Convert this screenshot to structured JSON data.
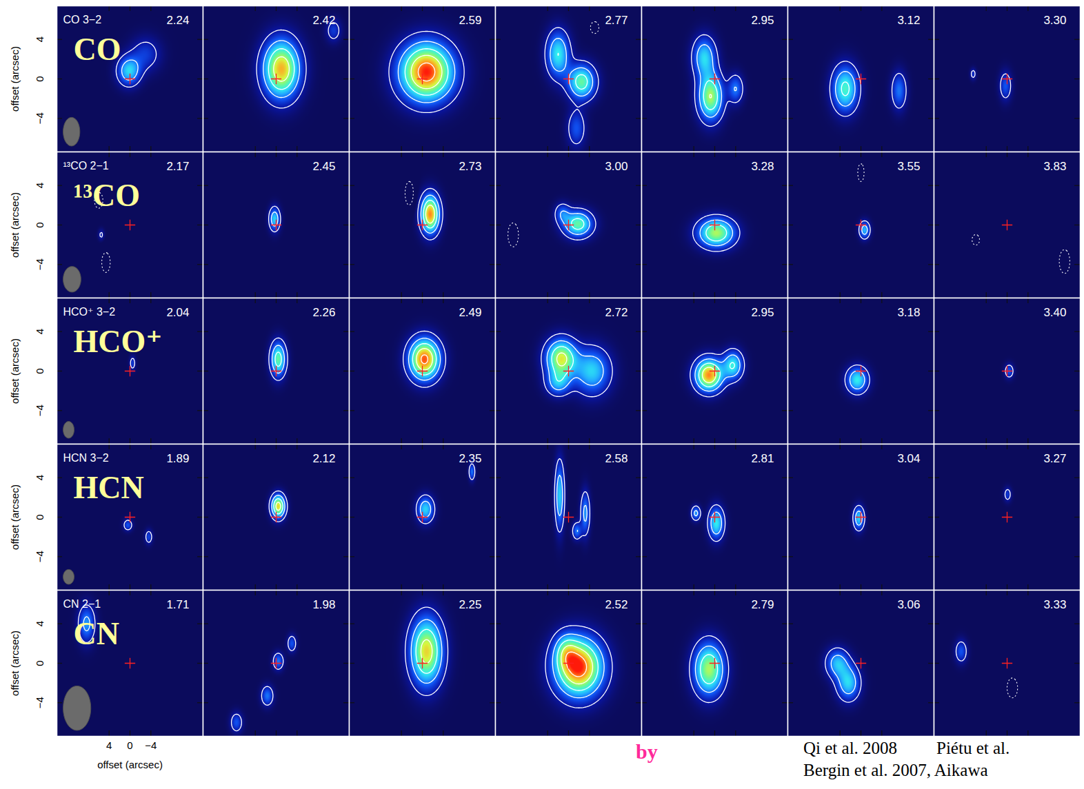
{
  "chart_data": {
    "type": "channel_map",
    "x_label": "offset (arcsec)",
    "y_label": "offset (arcsec)",
    "xlim": [
      14,
      -14
    ],
    "ylim": [
      -7.4,
      7.4
    ],
    "xticks": [
      4,
      0,
      {
        "value": -4,
        "label": "−4"
      }
    ],
    "yticks": [
      4,
      0,
      {
        "value": -4,
        "label": "−4"
      }
    ],
    "intensity_lim": [
      0,
      1
    ],
    "contour_levels": [
      0.12,
      0.3,
      0.5,
      0.7,
      0.9
    ],
    "star": [
      0,
      0
    ],
    "marker": "plus",
    "rows": [
      {
        "name": "CO",
        "transition": "CO 3−2",
        "beam": {
          "width": 3.2,
          "height": 2.9
        },
        "channels": [
          {
            "velocity": "2.24",
            "blobs": [
              {
                "x": 0.2,
                "y": 0.8,
                "sx": 1.5,
                "sy": 1.0,
                "peak": 0.45
              },
              {
                "x": -3,
                "y": 2.5,
                "sx": 2.0,
                "sy": 1.2,
                "peak": 0.2
              }
            ]
          },
          {
            "velocity": "2.42",
            "blobs": [
              {
                "x": -1,
                "y": 1,
                "sx": 2.4,
                "sy": 2.0,
                "peak": 0.85
              },
              {
                "x": -11,
                "y": 4.9,
                "sx": 1.0,
                "sy": 0.8,
                "peak": 0.2
              }
            ]
          },
          {
            "velocity": "2.59",
            "blobs": [
              {
                "x": -0.8,
                "y": 0.7,
                "sx": 3.5,
                "sy": 2.0,
                "peak": 1.0
              }
            ]
          },
          {
            "velocity": "2.77",
            "blobs": [
              {
                "x": 2,
                "y": 2.5,
                "sx": 1.5,
                "sy": 1.6,
                "peak": 0.5
              },
              {
                "x": -2.5,
                "y": -0.3,
                "sx": 1.8,
                "sy": 1.2,
                "peak": 0.6
              },
              {
                "x": -1.5,
                "y": -5,
                "sx": 1.2,
                "sy": 1.3,
                "peak": 0.25
              },
              {
                "x": -5,
                "y": 5.2,
                "sx": 0.8,
                "sy": 0.6,
                "peak": -0.2
              }
            ]
          },
          {
            "velocity": "2.95",
            "blobs": [
              {
                "x": 2,
                "y": 2.2,
                "sx": 1.5,
                "sy": 1.4,
                "peak": 0.45
              },
              {
                "x": 0.8,
                "y": -1.8,
                "sx": 1.6,
                "sy": 1.6,
                "peak": 0.7
              },
              {
                "x": -4,
                "y": -1,
                "sx": 1.0,
                "sy": 1.0,
                "peak": 0.3
              }
            ]
          },
          {
            "velocity": "3.12",
            "blobs": [
              {
                "x": 3,
                "y": -1,
                "sx": 1.7,
                "sy": 1.6,
                "peak": 0.55
              },
              {
                "x": -7.3,
                "y": -1.2,
                "sx": 1.0,
                "sy": 1.3,
                "peak": 0.3
              }
            ]
          },
          {
            "velocity": "3.30",
            "blobs": [
              {
                "x": 0.3,
                "y": -0.7,
                "sx": 0.8,
                "sy": 1.0,
                "peak": 0.25
              },
              {
                "x": 6.5,
                "y": 0.5,
                "sx": 0.4,
                "sy": 0.4,
                "peak": 0.18
              }
            ]
          }
        ]
      },
      {
        "name": "¹³CO",
        "transition": "¹³CO 2−1",
        "beam": {
          "width": 3.4,
          "height": 2.6
        },
        "channels": [
          {
            "velocity": "2.17",
            "blobs": [
              {
                "x": 4.6,
                "y": -3.8,
                "sx": 0.8,
                "sy": 1.0,
                "peak": -0.2
              },
              {
                "x": 6,
                "y": 2.5,
                "sx": 0.8,
                "sy": 0.8,
                "peak": -0.2
              },
              {
                "x": 5.5,
                "y": -1,
                "sx": 0.4,
                "sy": 0.4,
                "peak": 0.15
              }
            ]
          },
          {
            "velocity": "2.45",
            "blobs": [
              {
                "x": 0.3,
                "y": 0.6,
                "sx": 0.7,
                "sy": 0.8,
                "peak": 0.45
              }
            ]
          },
          {
            "velocity": "2.73",
            "blobs": [
              {
                "x": -1.5,
                "y": 1.1,
                "sx": 1.2,
                "sy": 1.3,
                "peak": 0.9
              },
              {
                "x": 2.5,
                "y": 3.2,
                "sx": 0.8,
                "sy": 1.2,
                "peak": -0.2
              }
            ]
          },
          {
            "velocity": "3.00",
            "blobs": [
              {
                "x": -1.8,
                "y": 0.1,
                "sx": 1.9,
                "sy": 0.9,
                "peak": 0.6
              },
              {
                "x": 1.2,
                "y": 1.2,
                "sx": 1.0,
                "sy": 0.7,
                "peak": 0.25
              },
              {
                "x": 10.6,
                "y": -1,
                "sx": 1.0,
                "sy": 1.2,
                "peak": -0.2
              }
            ]
          },
          {
            "velocity": "3.28",
            "blobs": [
              {
                "x": -0.3,
                "y": -0.8,
                "sx": 2.4,
                "sy": 1.0,
                "peak": 0.7
              }
            ]
          },
          {
            "velocity": "3.55",
            "blobs": [
              {
                "x": -0.7,
                "y": -0.5,
                "sx": 0.7,
                "sy": 0.6,
                "peak": 0.4
              },
              {
                "x": 0,
                "y": 5.3,
                "sx": 0.6,
                "sy": 0.9,
                "peak": -0.2
              }
            ]
          },
          {
            "velocity": "3.83",
            "blobs": [
              {
                "x": -11,
                "y": -3.7,
                "sx": 1.0,
                "sy": 1.2,
                "peak": -0.2
              },
              {
                "x": 6,
                "y": -1.5,
                "sx": 0.8,
                "sy": 0.6,
                "peak": -0.18
              }
            ]
          }
        ]
      },
      {
        "name": "HCO⁺",
        "transition": "HCO⁺ 3−2",
        "beam": {
          "width": 2.1,
          "height": 1.7
        },
        "channels": [
          {
            "velocity": "2.04",
            "blobs": [
              {
                "x": -0.5,
                "y": 0.8,
                "sx": 0.4,
                "sy": 0.5,
                "peak": 0.2
              }
            ]
          },
          {
            "velocity": "2.26",
            "blobs": [
              {
                "x": -0.4,
                "y": 1.2,
                "sx": 1.0,
                "sy": 1.2,
                "peak": 0.6
              }
            ]
          },
          {
            "velocity": "2.49",
            "blobs": [
              {
                "x": -0.4,
                "y": 1.2,
                "sx": 2.0,
                "sy": 1.4,
                "peak": 0.95
              }
            ]
          },
          {
            "velocity": "2.72",
            "blobs": [
              {
                "x": 1.4,
                "y": 1.3,
                "sx": 2.0,
                "sy": 1.3,
                "peak": 0.75
              },
              {
                "x": -4.5,
                "y": 0,
                "sx": 2.4,
                "sy": 1.6,
                "peak": 0.45
              },
              {
                "x": 2,
                "y": -1.2,
                "sx": 1.6,
                "sy": 0.9,
                "peak": 0.35
              }
            ]
          },
          {
            "velocity": "2.95",
            "blobs": [
              {
                "x": 1.1,
                "y": -0.4,
                "sx": 1.8,
                "sy": 1.1,
                "peak": 0.9
              },
              {
                "x": -3.5,
                "y": 0.6,
                "sx": 1.3,
                "sy": 1.0,
                "peak": 0.5
              }
            ]
          },
          {
            "velocity": "3.18",
            "blobs": [
              {
                "x": 0.7,
                "y": -0.9,
                "sx": 1.4,
                "sy": 0.9,
                "peak": 0.5
              }
            ]
          },
          {
            "velocity": "3.40",
            "blobs": [
              {
                "x": -0.4,
                "y": 0,
                "sx": 0.6,
                "sy": 0.5,
                "peak": 0.25
              }
            ]
          }
        ]
      },
      {
        "name": "HCN",
        "transition": "HCN 3−2",
        "beam": {
          "width": 2.1,
          "height": 1.5
        },
        "channels": [
          {
            "velocity": "1.89",
            "blobs": [
              {
                "x": 0.4,
                "y": -0.8,
                "sx": 0.6,
                "sy": 0.4,
                "peak": 0.25
              },
              {
                "x": -3.6,
                "y": -2,
                "sx": 0.5,
                "sy": 0.5,
                "peak": 0.22
              }
            ]
          },
          {
            "velocity": "2.12",
            "blobs": [
              {
                "x": -0.4,
                "y": 1.1,
                "sx": 0.9,
                "sy": 0.8,
                "peak": 0.8
              }
            ]
          },
          {
            "velocity": "2.35",
            "blobs": [
              {
                "x": -0.6,
                "y": 0.8,
                "sx": 1.1,
                "sy": 0.9,
                "peak": 0.45
              },
              {
                "x": -9.5,
                "y": 4.6,
                "sx": 0.4,
                "sy": 0.6,
                "peak": 0.3
              }
            ]
          },
          {
            "velocity": "2.58",
            "blobs": [
              {
                "x": 1.7,
                "y": 2.2,
                "sx": 0.6,
                "sy": 2.3,
                "peak": 0.45
              },
              {
                "x": -3.2,
                "y": 0.4,
                "sx": 0.6,
                "sy": 1.5,
                "peak": 0.35
              },
              {
                "x": -1.6,
                "y": -1.4,
                "sx": 0.6,
                "sy": 0.6,
                "peak": 0.3
              }
            ]
          },
          {
            "velocity": "2.81",
            "blobs": [
              {
                "x": -0.3,
                "y": -0.6,
                "sx": 1.0,
                "sy": 1.1,
                "peak": 0.5
              },
              {
                "x": 3.6,
                "y": 0.4,
                "sx": 0.6,
                "sy": 0.5,
                "peak": 0.35
              }
            ]
          },
          {
            "velocity": "3.04",
            "blobs": [
              {
                "x": 0.4,
                "y": -0.1,
                "sx": 0.7,
                "sy": 0.8,
                "peak": 0.45
              }
            ]
          },
          {
            "velocity": "3.27",
            "blobs": [
              {
                "x": -0.1,
                "y": 2.3,
                "sx": 0.5,
                "sy": 0.5,
                "peak": 0.2
              }
            ]
          }
        ]
      },
      {
        "name": "CN",
        "transition": "CN 2−1",
        "beam": {
          "width": 5.3,
          "height": 4.5
        },
        "channels": [
          {
            "velocity": "1.71",
            "blobs": [
              {
                "x": 8.3,
                "y": 4,
                "sx": 1.1,
                "sy": 1.3,
                "peak": 0.35
              }
            ]
          },
          {
            "velocity": "1.98",
            "blobs": [
              {
                "x": -0.4,
                "y": 0.2,
                "sx": 0.7,
                "sy": 0.6,
                "peak": 0.3
              },
              {
                "x": -3,
                "y": 2,
                "sx": 0.6,
                "sy": 0.6,
                "peak": 0.25
              },
              {
                "x": 1.7,
                "y": -3.3,
                "sx": 0.8,
                "sy": 0.7,
                "peak": 0.3
              },
              {
                "x": 7.6,
                "y": -6,
                "sx": 0.8,
                "sy": 0.7,
                "peak": 0.25
              }
            ]
          },
          {
            "velocity": "2.25",
            "blobs": [
              {
                "x": -0.8,
                "y": 1.2,
                "sx": 2.1,
                "sy": 2.3,
                "peak": 0.8
              }
            ]
          },
          {
            "velocity": "2.52",
            "blobs": [
              {
                "x": -2,
                "y": -0.4,
                "sx": 3.1,
                "sy": 2.0,
                "peak": 1.0
              },
              {
                "x": 0.5,
                "y": 1.2,
                "sx": 1.5,
                "sy": 1.2,
                "peak": 0.3
              }
            ]
          },
          {
            "velocity": "2.79",
            "blobs": [
              {
                "x": 1.1,
                "y": -0.6,
                "sx": 2.0,
                "sy": 1.8,
                "peak": 0.7
              }
            ]
          },
          {
            "velocity": "3.06",
            "blobs": [
              {
                "x": 4.5,
                "y": 0,
                "sx": 1.5,
                "sy": 1.0,
                "peak": 0.4
              },
              {
                "x": 2.4,
                "y": -2,
                "sx": 1.5,
                "sy": 1.2,
                "peak": 0.45
              }
            ]
          },
          {
            "velocity": "3.33",
            "blobs": [
              {
                "x": 8.8,
                "y": 1.2,
                "sx": 0.8,
                "sy": 0.8,
                "peak": 0.25
              },
              {
                "x": -1,
                "y": -2.5,
                "sx": 1.0,
                "sy": 1.0,
                "peak": -0.2
              }
            ]
          }
        ]
      }
    ],
    "annotations": [
      "by",
      "Qi et al. 2008",
      "Piétu et al.",
      "Bergin et al. 2007, Aikawa"
    ]
  }
}
